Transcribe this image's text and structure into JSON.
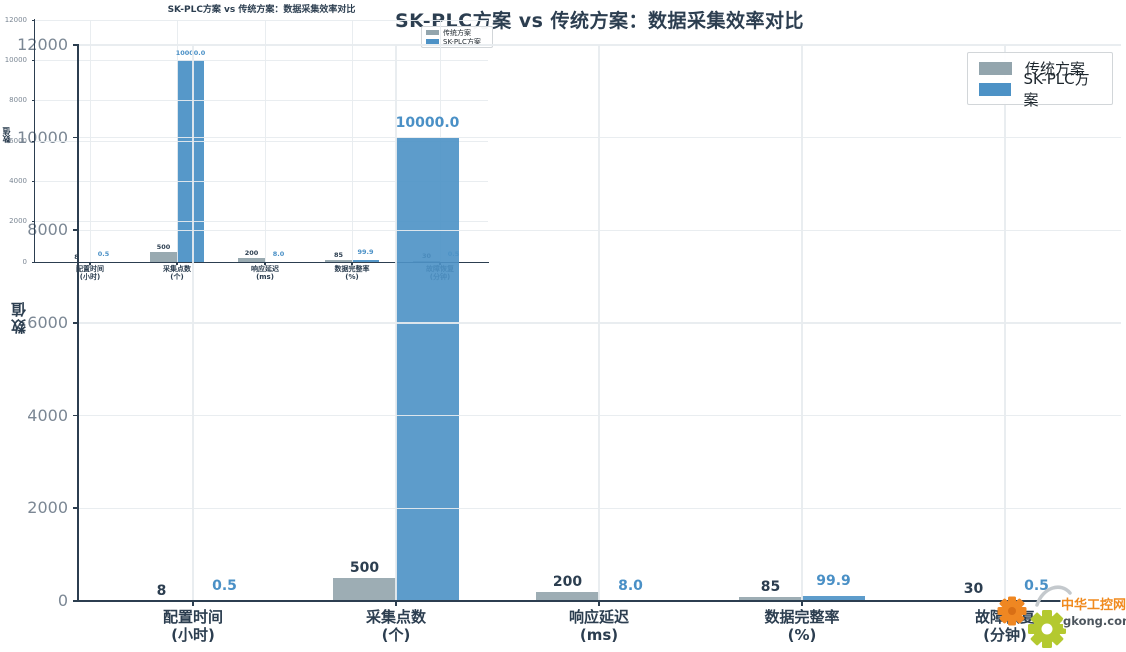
{
  "chart_data": {
    "type": "bar",
    "title": "SK-PLC方案 vs 传统方案：数据采集效率对比",
    "ylabel": "数值",
    "xlabel": "",
    "ylim": [
      0,
      12000
    ],
    "yticks": [
      0,
      2000,
      4000,
      6000,
      8000,
      10000,
      12000
    ],
    "grid": true,
    "legend_position": "upper right",
    "has_inset_copy_top_left": true,
    "categories": [
      {
        "name": "配置时间",
        "unit": "(小时)"
      },
      {
        "name": "采集点数",
        "unit": "(个)"
      },
      {
        "name": "响应延迟",
        "unit": "(ms)"
      },
      {
        "name": "数据完整率",
        "unit": "(%)"
      },
      {
        "name": "故障恢复",
        "unit": "(分钟)"
      }
    ],
    "series": [
      {
        "name": "传统方案",
        "color_key": "traditional",
        "values": [
          8,
          500,
          200,
          85,
          30
        ],
        "value_labels": [
          "8",
          "500",
          "200",
          "85",
          "30"
        ]
      },
      {
        "name": "SK-PLC方案",
        "color_key": "skplc",
        "values": [
          0.5,
          10000,
          8,
          99.9,
          0.5
        ],
        "value_labels": [
          "0.5",
          "10000.0",
          "8.0",
          "99.9",
          "0.5"
        ]
      }
    ]
  },
  "colors": {
    "traditional": "#93a5ad",
    "skplc": "#4d92c6",
    "traditional_label": "#2c3e50",
    "skplc_label": "#4a90c6",
    "axis": "#2c3e50",
    "tick_label": "#7b8794",
    "grid": "#e8ecef",
    "watermark_orange": "#ef8722",
    "watermark_green": "#b4c930",
    "watermark_text": "#f08a1e",
    "watermark_subtext": "#4d565e"
  },
  "watermark": {
    "text": "中华工控网",
    "subtext": "gkong.com"
  }
}
